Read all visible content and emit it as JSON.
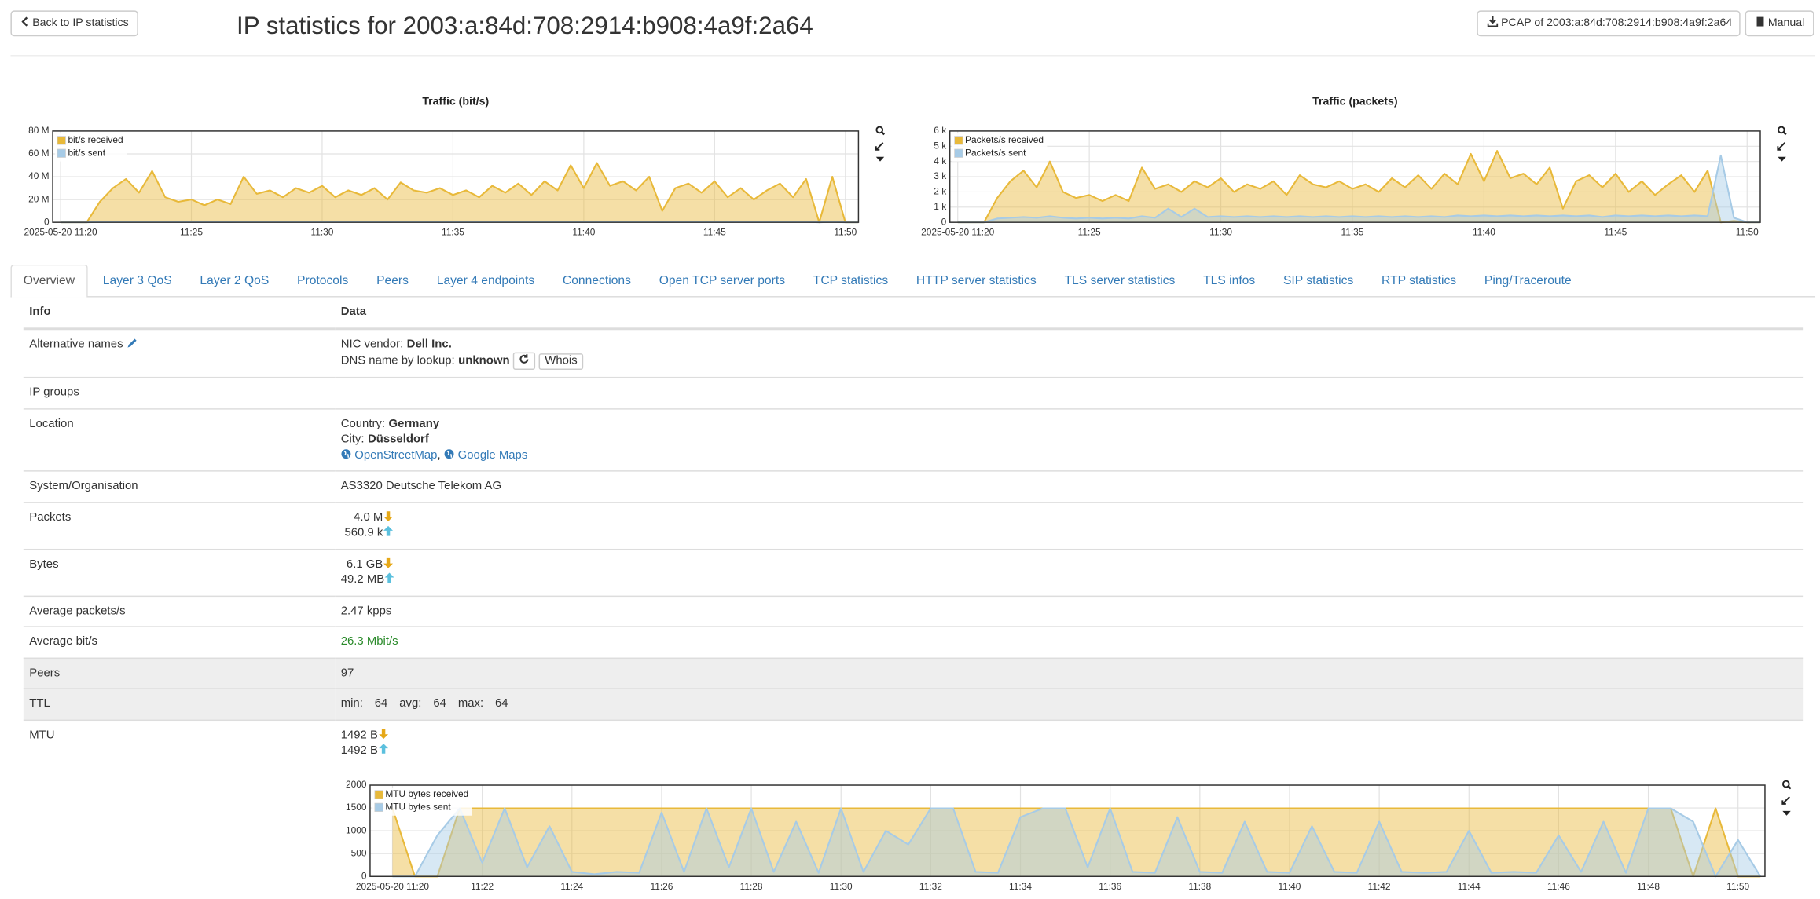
{
  "header": {
    "back_button": "Back to IP statistics",
    "title": "IP statistics for 2003:a:84d:708:2914:b908:4a9f:2a64",
    "pcap_button": "PCAP of 2003:a:84d:708:2914:b908:4a9f:2a64",
    "manual_button": "Manual"
  },
  "chart_data": [
    {
      "type": "area",
      "title": "Traffic (bit/s)",
      "grid": true,
      "legend": "upper-left",
      "xlim": [
        19.7,
        50.5
      ],
      "xticks": [
        {
          "value": 20,
          "label": "2025-05-20 11:20"
        },
        {
          "value": 25,
          "label": "11:25"
        },
        {
          "value": 30,
          "label": "11:30"
        },
        {
          "value": 35,
          "label": "11:35"
        },
        {
          "value": 40,
          "label": "11:40"
        },
        {
          "value": 45,
          "label": "11:45"
        },
        {
          "value": 50,
          "label": "11:50"
        }
      ],
      "ylim": [
        0,
        80000000
      ],
      "yticks": [
        0,
        {
          "value": 20000000,
          "label": "20 M"
        },
        {
          "value": 40000000,
          "label": "40 M"
        },
        {
          "value": 60000000,
          "label": "60 M"
        },
        {
          "value": 80000000,
          "label": "80 M"
        }
      ],
      "x": [
        20,
        20.5,
        21,
        21.5,
        22,
        22.5,
        23,
        23.5,
        24,
        24.5,
        25,
        25.5,
        26,
        26.5,
        27,
        27.5,
        28,
        28.5,
        29,
        29.5,
        30,
        30.5,
        31,
        31.5,
        32,
        32.5,
        33,
        33.5,
        34,
        34.5,
        35,
        35.5,
        36,
        36.5,
        37,
        37.5,
        38,
        38.5,
        39,
        39.5,
        40,
        40.5,
        41,
        41.5,
        42,
        42.5,
        43,
        43.5,
        44,
        44.5,
        45,
        45.5,
        46,
        46.5,
        47,
        47.5,
        48,
        48.5,
        49,
        49.5,
        50,
        50.5
      ],
      "series": [
        {
          "name": "bit/s received",
          "color": "#e8b93a",
          "values": [
            0,
            0,
            0,
            18000000,
            30000000,
            38000000,
            26000000,
            45000000,
            22000000,
            18000000,
            20000000,
            15000000,
            20000000,
            16000000,
            40000000,
            25000000,
            28000000,
            22000000,
            30000000,
            26000000,
            32000000,
            22000000,
            28000000,
            24000000,
            30000000,
            20000000,
            35000000,
            28000000,
            26000000,
            30000000,
            24000000,
            28000000,
            22000000,
            32000000,
            26000000,
            34000000,
            24000000,
            36000000,
            28000000,
            50000000,
            30000000,
            52000000,
            32000000,
            36000000,
            28000000,
            40000000,
            10000000,
            30000000,
            34000000,
            26000000,
            36000000,
            22000000,
            30000000,
            20000000,
            28000000,
            34000000,
            22000000,
            38000000,
            0,
            40000000,
            0,
            0
          ]
        },
        {
          "name": "bit/s sent",
          "color": "#a7cbe6",
          "values": [
            0,
            0,
            0,
            400000,
            500000,
            600000,
            450000,
            700000,
            400000,
            350000,
            400000,
            300000,
            400000,
            350000,
            600000,
            450000,
            500000,
            400000,
            500000,
            450000,
            550000,
            400000,
            500000,
            450000,
            500000,
            400000,
            550000,
            500000,
            450000,
            500000,
            450000,
            500000,
            400000,
            550000,
            450000,
            550000,
            450000,
            600000,
            500000,
            700000,
            500000,
            750000,
            550000,
            600000,
            500000,
            600000,
            250000,
            500000,
            550000,
            450000,
            600000,
            400000,
            500000,
            400000,
            500000,
            550000,
            400000,
            600000,
            0,
            600000,
            0,
            0
          ]
        }
      ]
    },
    {
      "type": "area",
      "title": "Traffic (packets)",
      "grid": true,
      "legend": "upper-left",
      "xlim": [
        19.7,
        50.5
      ],
      "xticks": [
        {
          "value": 20,
          "label": "2025-05-20 11:20"
        },
        {
          "value": 25,
          "label": "11:25"
        },
        {
          "value": 30,
          "label": "11:30"
        },
        {
          "value": 35,
          "label": "11:35"
        },
        {
          "value": 40,
          "label": "11:40"
        },
        {
          "value": 45,
          "label": "11:45"
        },
        {
          "value": 50,
          "label": "11:50"
        }
      ],
      "ylim": [
        0,
        6000
      ],
      "yticks": [
        0,
        {
          "value": 1000,
          "label": "1 k"
        },
        {
          "value": 2000,
          "label": "2 k"
        },
        {
          "value": 3000,
          "label": "3 k"
        },
        {
          "value": 4000,
          "label": "4 k"
        },
        {
          "value": 5000,
          "label": "5 k"
        },
        {
          "value": 6000,
          "label": "6 k"
        }
      ],
      "x": [
        20,
        20.5,
        21,
        21.5,
        22,
        22.5,
        23,
        23.5,
        24,
        24.5,
        25,
        25.5,
        26,
        26.5,
        27,
        27.5,
        28,
        28.5,
        29,
        29.5,
        30,
        30.5,
        31,
        31.5,
        32,
        32.5,
        33,
        33.5,
        34,
        34.5,
        35,
        35.5,
        36,
        36.5,
        37,
        37.5,
        38,
        38.5,
        39,
        39.5,
        40,
        40.5,
        41,
        41.5,
        42,
        42.5,
        43,
        43.5,
        44,
        44.5,
        45,
        45.5,
        46,
        46.5,
        47,
        47.5,
        48,
        48.5,
        49,
        49.5,
        50,
        50.5
      ],
      "series": [
        {
          "name": "Packets/s received",
          "color": "#e8b93a",
          "values": [
            0,
            0,
            0,
            1600,
            2700,
            3400,
            2300,
            4000,
            2000,
            1600,
            1800,
            1400,
            1800,
            1400,
            3600,
            2200,
            2500,
            2000,
            2700,
            2300,
            2900,
            2000,
            2500,
            2200,
            2700,
            1800,
            3100,
            2500,
            2300,
            2700,
            2200,
            2500,
            2000,
            2900,
            2300,
            3100,
            2200,
            3200,
            2500,
            4500,
            2700,
            4700,
            2900,
            3200,
            2500,
            3600,
            900,
            2700,
            3100,
            2300,
            3200,
            2000,
            2700,
            1800,
            2500,
            3100,
            2000,
            3400,
            0,
            100,
            0,
            0
          ]
        },
        {
          "name": "Packets/s sent",
          "color": "#a7cbe6",
          "values": [
            0,
            0,
            0,
            250,
            300,
            350,
            300,
            400,
            300,
            250,
            300,
            250,
            300,
            250,
            400,
            300,
            900,
            350,
            900,
            350,
            400,
            350,
            400,
            350,
            400,
            350,
            400,
            350,
            400,
            350,
            400,
            350,
            400,
            350,
            400,
            350,
            400,
            350,
            450,
            400,
            450,
            400,
            450,
            400,
            450,
            400,
            450,
            400,
            450,
            350,
            450,
            400,
            450,
            400,
            450,
            400,
            450,
            400,
            4400,
            300,
            0,
            0
          ]
        }
      ]
    },
    {
      "type": "area",
      "grid": true,
      "legend": "upper-left",
      "xlim": [
        19.5,
        50.6
      ],
      "xticks": [
        {
          "value": 20,
          "label": "2025-05-20 11:20"
        },
        {
          "value": 22,
          "label": "11:22"
        },
        {
          "value": 24,
          "label": "11:24"
        },
        {
          "value": 26,
          "label": "11:26"
        },
        {
          "value": 28,
          "label": "11:28"
        },
        {
          "value": 30,
          "label": "11:30"
        },
        {
          "value": 32,
          "label": "11:32"
        },
        {
          "value": 34,
          "label": "11:34"
        },
        {
          "value": 36,
          "label": "11:36"
        },
        {
          "value": 38,
          "label": "11:38"
        },
        {
          "value": 40,
          "label": "11:40"
        },
        {
          "value": 42,
          "label": "11:42"
        },
        {
          "value": 44,
          "label": "11:44"
        },
        {
          "value": 46,
          "label": "11:46"
        },
        {
          "value": 48,
          "label": "11:48"
        },
        {
          "value": 50,
          "label": "11:50"
        }
      ],
      "ylim": [
        0,
        2000
      ],
      "yticks": [
        0,
        500,
        1000,
        1500,
        2000
      ],
      "x": [
        20,
        20.5,
        21,
        21.5,
        22,
        22.5,
        23,
        23.5,
        24,
        24.5,
        25,
        25.5,
        26,
        26.5,
        27,
        27.5,
        28,
        28.5,
        29,
        29.5,
        30,
        30.5,
        31,
        31.5,
        32,
        32.5,
        33,
        33.5,
        34,
        34.5,
        35,
        35.5,
        36,
        36.5,
        37,
        37.5,
        38,
        38.5,
        39,
        39.5,
        40,
        40.5,
        41,
        41.5,
        42,
        42.5,
        43,
        43.5,
        44,
        44.5,
        45,
        45.5,
        46,
        46.5,
        47,
        47.5,
        48,
        48.5,
        49,
        49.5,
        50,
        50.5
      ],
      "series": [
        {
          "name": "MTU bytes received",
          "color": "#e8b93a",
          "values": [
            1492,
            0,
            0,
            1492,
            1492,
            1492,
            1492,
            1492,
            1492,
            1492,
            1492,
            1492,
            1492,
            1492,
            1492,
            1492,
            1492,
            1492,
            1492,
            1492,
            1492,
            1492,
            1492,
            1492,
            1492,
            1492,
            1492,
            1492,
            1492,
            1492,
            1492,
            1492,
            1492,
            1492,
            1492,
            1492,
            1492,
            1492,
            1492,
            1492,
            1492,
            1492,
            1492,
            1492,
            1492,
            1492,
            1492,
            1492,
            1492,
            1492,
            1492,
            1492,
            1492,
            1492,
            1492,
            1492,
            1492,
            1492,
            0,
            1492,
            0,
            0
          ]
        },
        {
          "name": "MTU bytes sent",
          "color": "#a7cbe6",
          "values": [
            0,
            0,
            900,
            1492,
            300,
            1492,
            200,
            1100,
            100,
            50,
            100,
            80,
            1400,
            100,
            1492,
            200,
            1492,
            100,
            1200,
            80,
            1492,
            100,
            1000,
            700,
            1492,
            1492,
            100,
            80,
            1300,
            1492,
            1492,
            200,
            1492,
            100,
            80,
            1300,
            100,
            80,
            1200,
            100,
            80,
            1100,
            100,
            80,
            1200,
            100,
            80,
            100,
            1000,
            80,
            100,
            80,
            900,
            100,
            1200,
            80,
            1492,
            1492,
            1200,
            0,
            800,
            0
          ]
        }
      ]
    }
  ],
  "tabs": [
    "Overview",
    "Layer 3 QoS",
    "Layer 2 QoS",
    "Protocols",
    "Peers",
    "Layer 4 endpoints",
    "Connections",
    "Open TCP server ports",
    "TCP statistics",
    "HTTP server statistics",
    "TLS server statistics",
    "TLS infos",
    "SIP statistics",
    "RTP statistics",
    "Ping/Traceroute"
  ],
  "active_tab": 0,
  "table": {
    "columns": [
      "Info",
      "Data"
    ],
    "rows": [
      {
        "label": "Alternative names",
        "label_icon": "pencil",
        "lines": [
          [
            {
              "text": "NIC vendor:"
            },
            {
              "text": "Dell Inc.",
              "style": "bold"
            }
          ],
          [
            {
              "text": "DNS name by lookup:"
            },
            {
              "text": "unknown",
              "style": "bold"
            },
            {
              "icon": "refresh",
              "style": "button"
            },
            {
              "text": "Whois",
              "style": "button"
            }
          ]
        ]
      },
      {
        "label": "IP groups",
        "lines": []
      },
      {
        "label": "Location",
        "lines": [
          [
            {
              "text": "Country:"
            },
            {
              "text": "Germany",
              "style": "bold"
            }
          ],
          [
            {
              "text": "City:"
            },
            {
              "text": "Düsseldorf",
              "style": "bold"
            }
          ],
          [
            {
              "text": "OpenStreetMap",
              "style": "link",
              "icon": "globe"
            },
            {
              "text": ",",
              "join": true
            },
            {
              "text": "Google Maps",
              "style": "link",
              "icon": "globe"
            }
          ]
        ]
      },
      {
        "label": "System/Organisation",
        "lines": [
          [
            {
              "text": "AS3320 Deutsche Telekom AG"
            }
          ]
        ]
      },
      {
        "label": "Packets",
        "lines": [
          [
            {
              "text": "4.0 M",
              "style": "num",
              "icon": "down"
            }
          ],
          [
            {
              "text": "560.9 k",
              "style": "num",
              "icon": "up"
            }
          ]
        ]
      },
      {
        "label": "Bytes",
        "lines": [
          [
            {
              "text": "6.1 GB",
              "style": "num",
              "icon": "down"
            }
          ],
          [
            {
              "text": "49.2 MB",
              "style": "num",
              "icon": "up"
            }
          ]
        ]
      },
      {
        "label": "Average packets/s",
        "lines": [
          [
            {
              "text": "2.47 kpps"
            }
          ]
        ]
      },
      {
        "label": "Average bit/s",
        "lines": [
          [
            {
              "text": "26.3 Mbit/s",
              "style": "green"
            }
          ]
        ]
      },
      {
        "label": "Peers",
        "highlight": true,
        "lines": [
          [
            {
              "text": "97"
            }
          ]
        ]
      },
      {
        "label": "TTL",
        "highlight": true,
        "lines": [
          [
            {
              "text": "min:"
            },
            {
              "text": "64",
              "style": "spaced"
            },
            {
              "text": "avg:",
              "style": "spaced"
            },
            {
              "text": "64",
              "style": "spaced"
            },
            {
              "text": "max:",
              "style": "spaced"
            },
            {
              "text": "64",
              "style": "spaced"
            }
          ]
        ]
      },
      {
        "label": "MTU",
        "chart": true,
        "lines": [
          [
            {
              "text": "1492 B",
              "icon": "down"
            }
          ],
          [
            {
              "text": "1492 B",
              "icon": "up"
            }
          ]
        ]
      }
    ]
  }
}
